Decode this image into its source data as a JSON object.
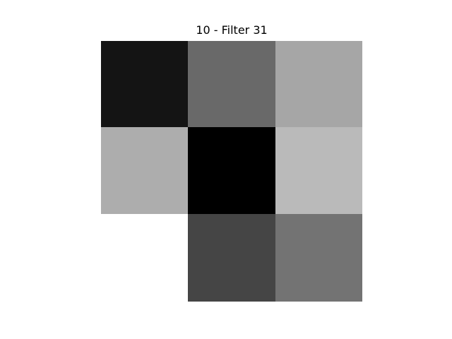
{
  "chart_data": {
    "type": "heatmap",
    "title": "10 - Filter 31",
    "colormap": "gray",
    "rows": 3,
    "cols": 3,
    "values": [
      [
        0.08,
        0.41,
        0.65
      ],
      [
        0.68,
        0.0,
        0.73
      ],
      [
        1.0,
        0.27,
        0.45
      ]
    ],
    "axes_visible": false,
    "grid": false,
    "colors": {
      "background": "#ffffff",
      "title": "#000000"
    }
  }
}
